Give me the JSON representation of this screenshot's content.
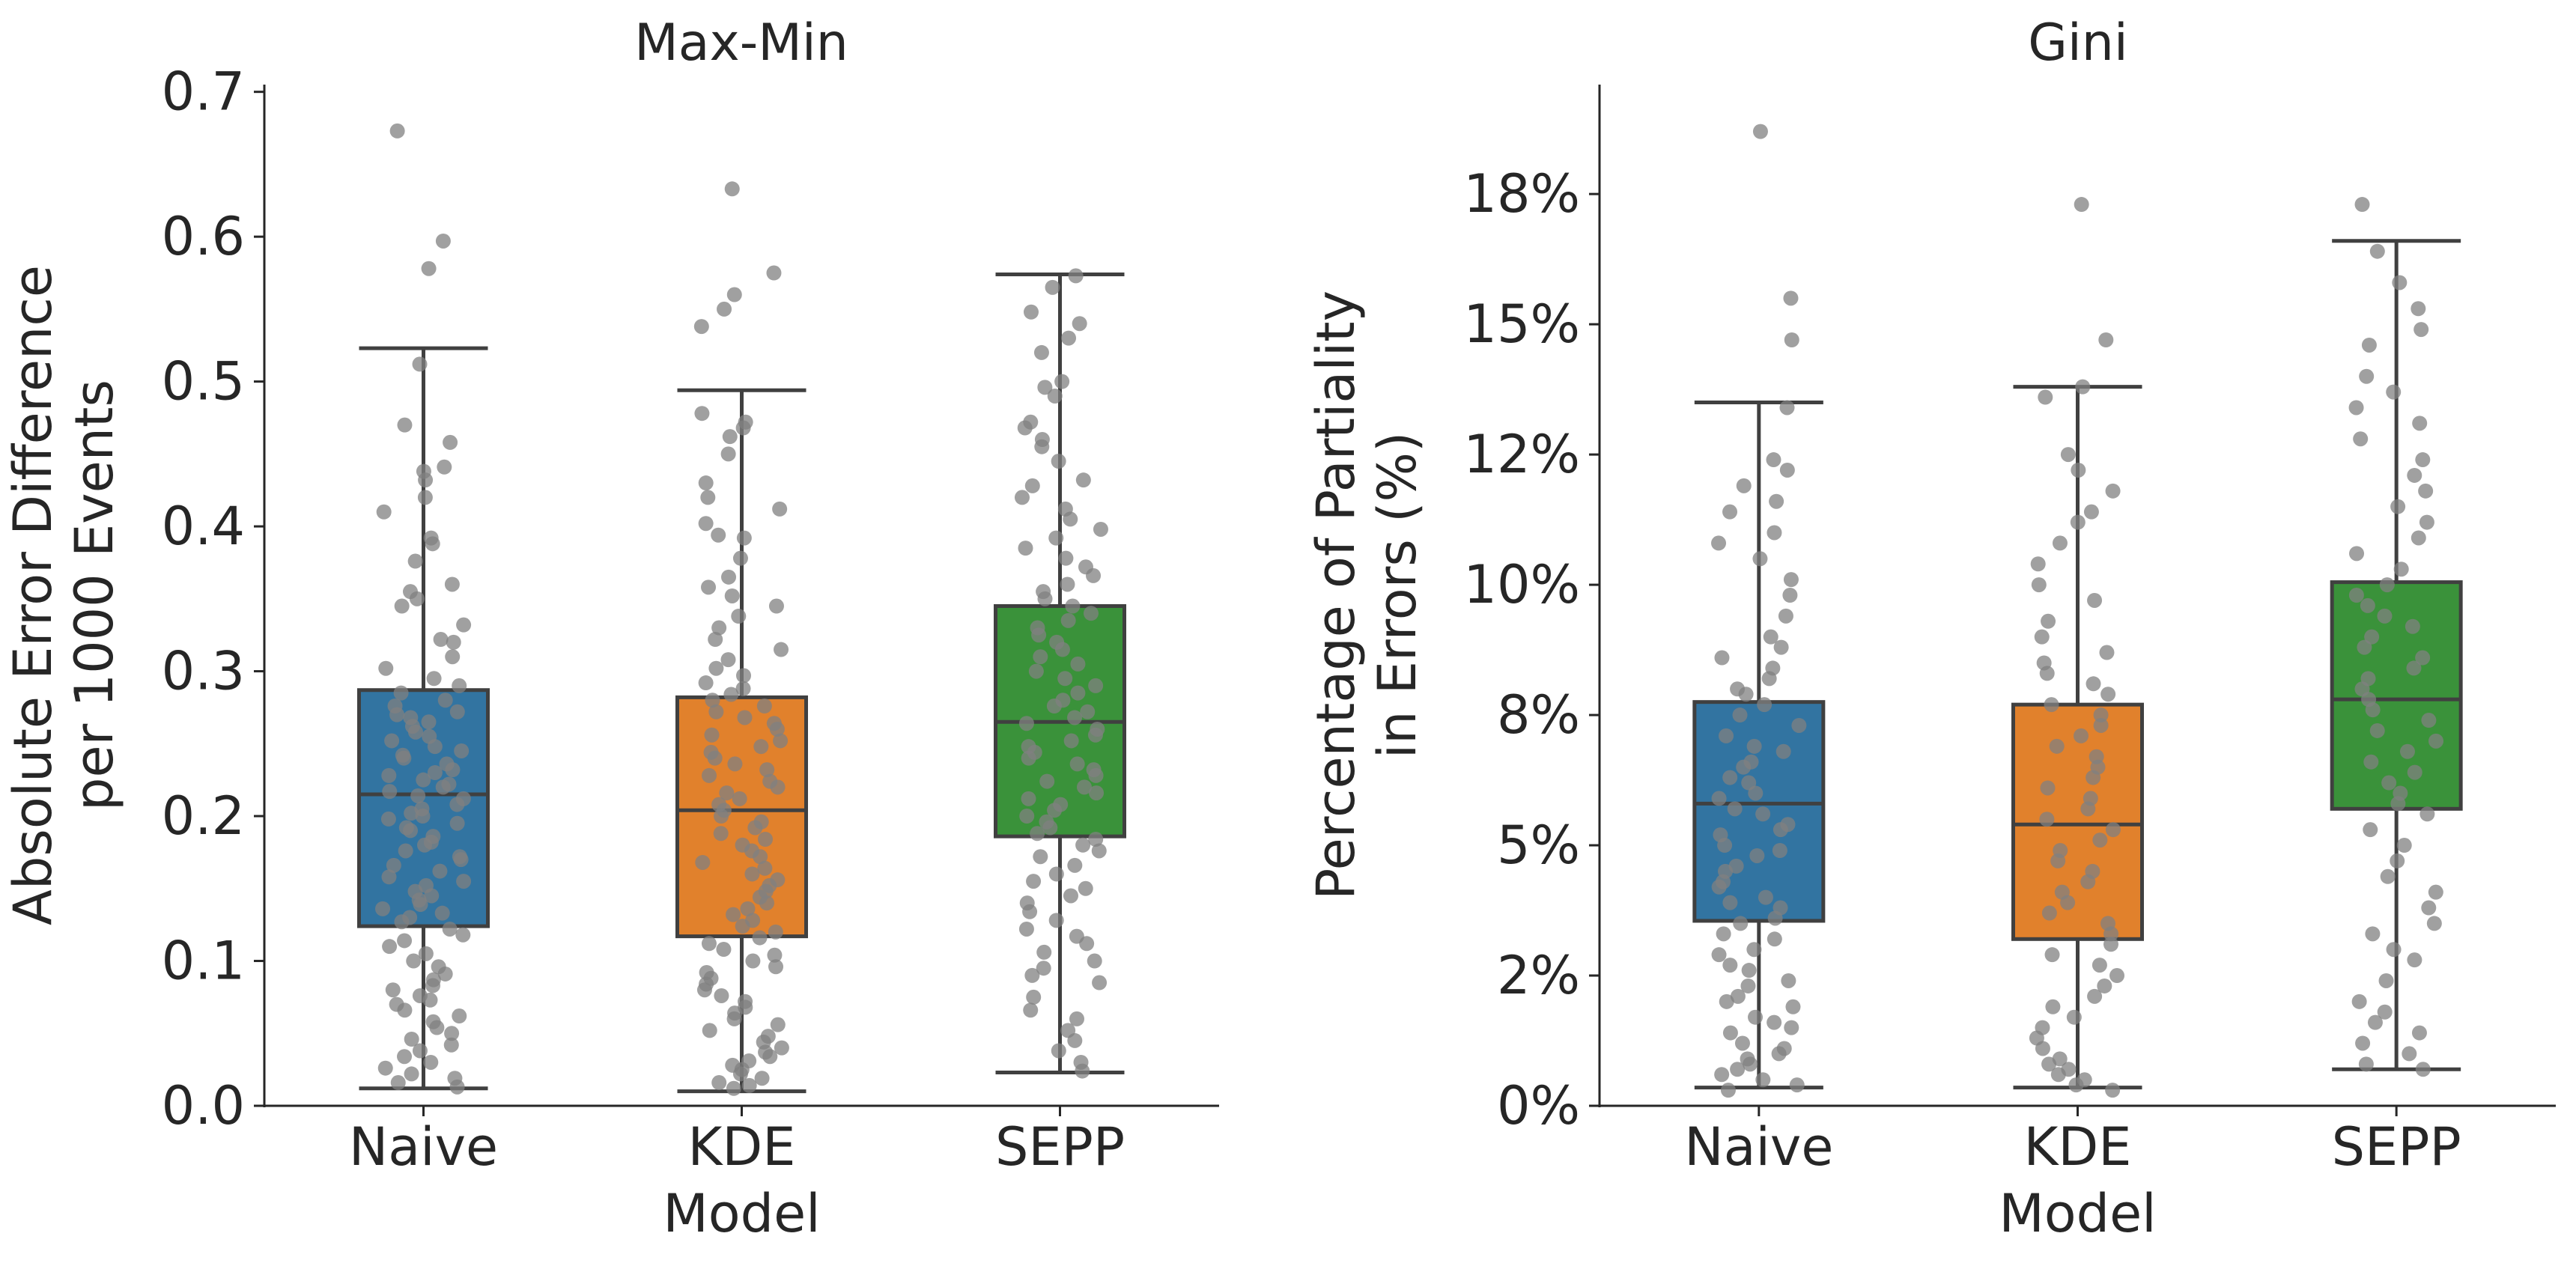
{
  "chart_data": [
    {
      "type": "box",
      "title": "Max-Min",
      "xlabel": "Model",
      "ylabel": [
        "Absolute Error Difference",
        "per 1000 Events"
      ],
      "categories": [
        "Naive",
        "KDE",
        "SEPP"
      ],
      "ylim": [
        0,
        0.705
      ],
      "yticks": [
        0.0,
        0.1,
        0.2,
        0.3,
        0.4,
        0.5,
        0.6,
        0.7
      ],
      "ytick_labels": [
        "0.0",
        "0.1",
        "0.2",
        "0.3",
        "0.4",
        "0.5",
        "0.6",
        "0.7"
      ],
      "boxes": [
        {
          "category": "Naive",
          "color": "#3274a1",
          "whisker_low": 0.012,
          "q1": 0.124,
          "median": 0.215,
          "q3": 0.287,
          "whisker_high": 0.523
        },
        {
          "category": "KDE",
          "color": "#e1812c",
          "whisker_low": 0.01,
          "q1": 0.117,
          "median": 0.204,
          "q3": 0.282,
          "whisker_high": 0.494
        },
        {
          "category": "SEPP",
          "color": "#3a923a",
          "whisker_low": 0.023,
          "q1": 0.186,
          "median": 0.265,
          "q3": 0.345,
          "whisker_high": 0.574
        }
      ],
      "points": {
        "Naive": [
          0.673,
          0.597,
          0.578,
          0.512,
          0.47,
          0.458,
          0.441,
          0.438,
          0.432,
          0.42,
          0.41,
          0.392,
          0.388,
          0.376,
          0.36,
          0.355,
          0.35,
          0.345,
          0.332,
          0.322,
          0.32,
          0.31,
          0.302,
          0.295,
          0.29,
          0.285,
          0.28,
          0.276,
          0.272,
          0.27,
          0.268,
          0.265,
          0.262,
          0.258,
          0.255,
          0.252,
          0.248,
          0.245,
          0.242,
          0.24,
          0.236,
          0.232,
          0.23,
          0.228,
          0.225,
          0.222,
          0.22,
          0.217,
          0.214,
          0.212,
          0.208,
          0.205,
          0.202,
          0.2,
          0.198,
          0.195,
          0.192,
          0.19,
          0.186,
          0.182,
          0.18,
          0.176,
          0.172,
          0.17,
          0.166,
          0.162,
          0.158,
          0.155,
          0.152,
          0.148,
          0.145,
          0.142,
          0.139,
          0.136,
          0.133,
          0.13,
          0.127,
          0.122,
          0.118,
          0.114,
          0.11,
          0.105,
          0.1,
          0.096,
          0.091,
          0.087,
          0.083,
          0.08,
          0.076,
          0.073,
          0.07,
          0.066,
          0.062,
          0.058,
          0.054,
          0.05,
          0.046,
          0.042,
          0.038,
          0.034,
          0.03,
          0.026,
          0.022,
          0.019,
          0.016,
          0.013
        ],
        "KDE": [
          0.633,
          0.575,
          0.56,
          0.55,
          0.538,
          0.478,
          0.472,
          0.468,
          0.462,
          0.45,
          0.43,
          0.42,
          0.412,
          0.402,
          0.394,
          0.392,
          0.378,
          0.365,
          0.358,
          0.352,
          0.345,
          0.338,
          0.33,
          0.322,
          0.315,
          0.308,
          0.302,
          0.297,
          0.292,
          0.288,
          0.284,
          0.28,
          0.276,
          0.272,
          0.268,
          0.264,
          0.26,
          0.256,
          0.252,
          0.248,
          0.244,
          0.24,
          0.236,
          0.232,
          0.228,
          0.224,
          0.22,
          0.216,
          0.212,
          0.208,
          0.204,
          0.2,
          0.196,
          0.192,
          0.188,
          0.184,
          0.18,
          0.176,
          0.172,
          0.168,
          0.164,
          0.16,
          0.156,
          0.152,
          0.148,
          0.144,
          0.14,
          0.136,
          0.132,
          0.128,
          0.124,
          0.12,
          0.116,
          0.112,
          0.108,
          0.104,
          0.1,
          0.096,
          0.092,
          0.088,
          0.084,
          0.08,
          0.076,
          0.072,
          0.068,
          0.064,
          0.06,
          0.056,
          0.052,
          0.048,
          0.044,
          0.04,
          0.037,
          0.034,
          0.031,
          0.028,
          0.025,
          0.022,
          0.019,
          0.016,
          0.014,
          0.012
        ],
        "SEPP": [
          0.573,
          0.565,
          0.548,
          0.54,
          0.53,
          0.52,
          0.5,
          0.496,
          0.49,
          0.472,
          0.468,
          0.46,
          0.455,
          0.445,
          0.432,
          0.428,
          0.42,
          0.412,
          0.405,
          0.398,
          0.392,
          0.385,
          0.378,
          0.372,
          0.366,
          0.36,
          0.355,
          0.35,
          0.345,
          0.34,
          0.335,
          0.33,
          0.325,
          0.32,
          0.315,
          0.31,
          0.305,
          0.3,
          0.295,
          0.29,
          0.285,
          0.28,
          0.276,
          0.272,
          0.268,
          0.264,
          0.26,
          0.256,
          0.252,
          0.248,
          0.244,
          0.24,
          0.236,
          0.232,
          0.228,
          0.224,
          0.22,
          0.216,
          0.212,
          0.208,
          0.204,
          0.2,
          0.196,
          0.192,
          0.188,
          0.184,
          0.18,
          0.176,
          0.172,
          0.166,
          0.16,
          0.155,
          0.15,
          0.145,
          0.14,
          0.134,
          0.128,
          0.122,
          0.117,
          0.112,
          0.106,
          0.1,
          0.095,
          0.09,
          0.085,
          0.075,
          0.066,
          0.06,
          0.052,
          0.045,
          0.038,
          0.03,
          0.024
        ],
        "color": "#808080"
      },
      "grid": false
    },
    {
      "type": "box",
      "title": "Gini",
      "xlabel": "Model",
      "ylabel": [
        "Percentage of Partiality",
        "in Errors (%)"
      ],
      "categories": [
        "Naive",
        "KDE",
        "SEPP"
      ],
      "ylim": [
        0,
        19.6
      ],
      "yticks": [
        0,
        2.5,
        5,
        7.5,
        10,
        12.5,
        15,
        17.5
      ],
      "ytick_labels": [
        "0%",
        "2%",
        "5%",
        "8%",
        "10%",
        "12%",
        "15%",
        "18%"
      ],
      "boxes": [
        {
          "category": "Naive",
          "color": "#3274a1",
          "whisker_low": 0.35,
          "q1": 3.55,
          "median": 5.8,
          "q3": 7.75,
          "whisker_high": 13.5
        },
        {
          "category": "KDE",
          "color": "#e1812c",
          "whisker_low": 0.35,
          "q1": 3.2,
          "median": 5.4,
          "q3": 7.7,
          "whisker_high": 13.8
        },
        {
          "category": "SEPP",
          "color": "#3a923a",
          "whisker_low": 0.7,
          "q1": 5.7,
          "median": 7.8,
          "q3": 10.05,
          "whisker_high": 16.6
        }
      ],
      "points": {
        "Naive": [
          18.7,
          15.5,
          14.7,
          13.4,
          12.4,
          12.2,
          11.9,
          11.6,
          11.4,
          11.0,
          10.8,
          10.5,
          10.1,
          9.8,
          9.4,
          9.0,
          8.8,
          8.6,
          8.4,
          8.2,
          8.0,
          7.9,
          7.7,
          7.5,
          7.3,
          7.1,
          6.9,
          6.8,
          6.6,
          6.5,
          6.3,
          6.2,
          6.0,
          5.9,
          5.7,
          5.6,
          5.4,
          5.3,
          5.2,
          5.0,
          4.9,
          4.8,
          4.6,
          4.5,
          4.3,
          4.2,
          4.0,
          3.9,
          3.8,
          3.6,
          3.5,
          3.3,
          3.2,
          3.0,
          2.9,
          2.7,
          2.6,
          2.4,
          2.3,
          2.1,
          2.0,
          1.9,
          1.7,
          1.6,
          1.5,
          1.4,
          1.2,
          1.1,
          1.0,
          0.9,
          0.8,
          0.7,
          0.6,
          0.5,
          0.4,
          0.3
        ],
        "KDE": [
          17.3,
          14.7,
          13.8,
          13.6,
          12.5,
          12.2,
          11.8,
          11.4,
          11.2,
          10.8,
          10.4,
          10.0,
          9.7,
          9.3,
          9.0,
          8.7,
          8.5,
          8.3,
          8.1,
          7.9,
          7.7,
          7.5,
          7.3,
          7.1,
          6.9,
          6.7,
          6.5,
          6.3,
          6.1,
          5.9,
          5.7,
          5.5,
          5.3,
          5.1,
          4.9,
          4.7,
          4.5,
          4.3,
          4.1,
          3.9,
          3.7,
          3.5,
          3.3,
          3.1,
          2.9,
          2.7,
          2.5,
          2.3,
          2.1,
          1.9,
          1.7,
          1.5,
          1.3,
          1.1,
          0.9,
          0.8,
          0.7,
          0.6,
          0.5,
          0.4,
          0.3
        ],
        "SEPP": [
          17.3,
          16.4,
          15.8,
          15.3,
          14.9,
          14.6,
          14.0,
          13.7,
          13.4,
          13.1,
          12.8,
          12.4,
          12.1,
          11.8,
          11.5,
          11.2,
          10.9,
          10.6,
          10.3,
          10.0,
          9.8,
          9.6,
          9.4,
          9.2,
          9.0,
          8.8,
          8.6,
          8.4,
          8.2,
          8.0,
          7.8,
          7.6,
          7.4,
          7.2,
          7.0,
          6.8,
          6.6,
          6.4,
          6.2,
          6.0,
          5.8,
          5.6,
          5.3,
          5.0,
          4.7,
          4.4,
          4.1,
          3.8,
          3.5,
          3.3,
          3.0,
          2.8,
          2.4,
          2.0,
          1.8,
          1.6,
          1.4,
          1.2,
          1.0,
          0.8,
          0.7
        ],
        "color": "#808080"
      },
      "grid": false
    }
  ]
}
